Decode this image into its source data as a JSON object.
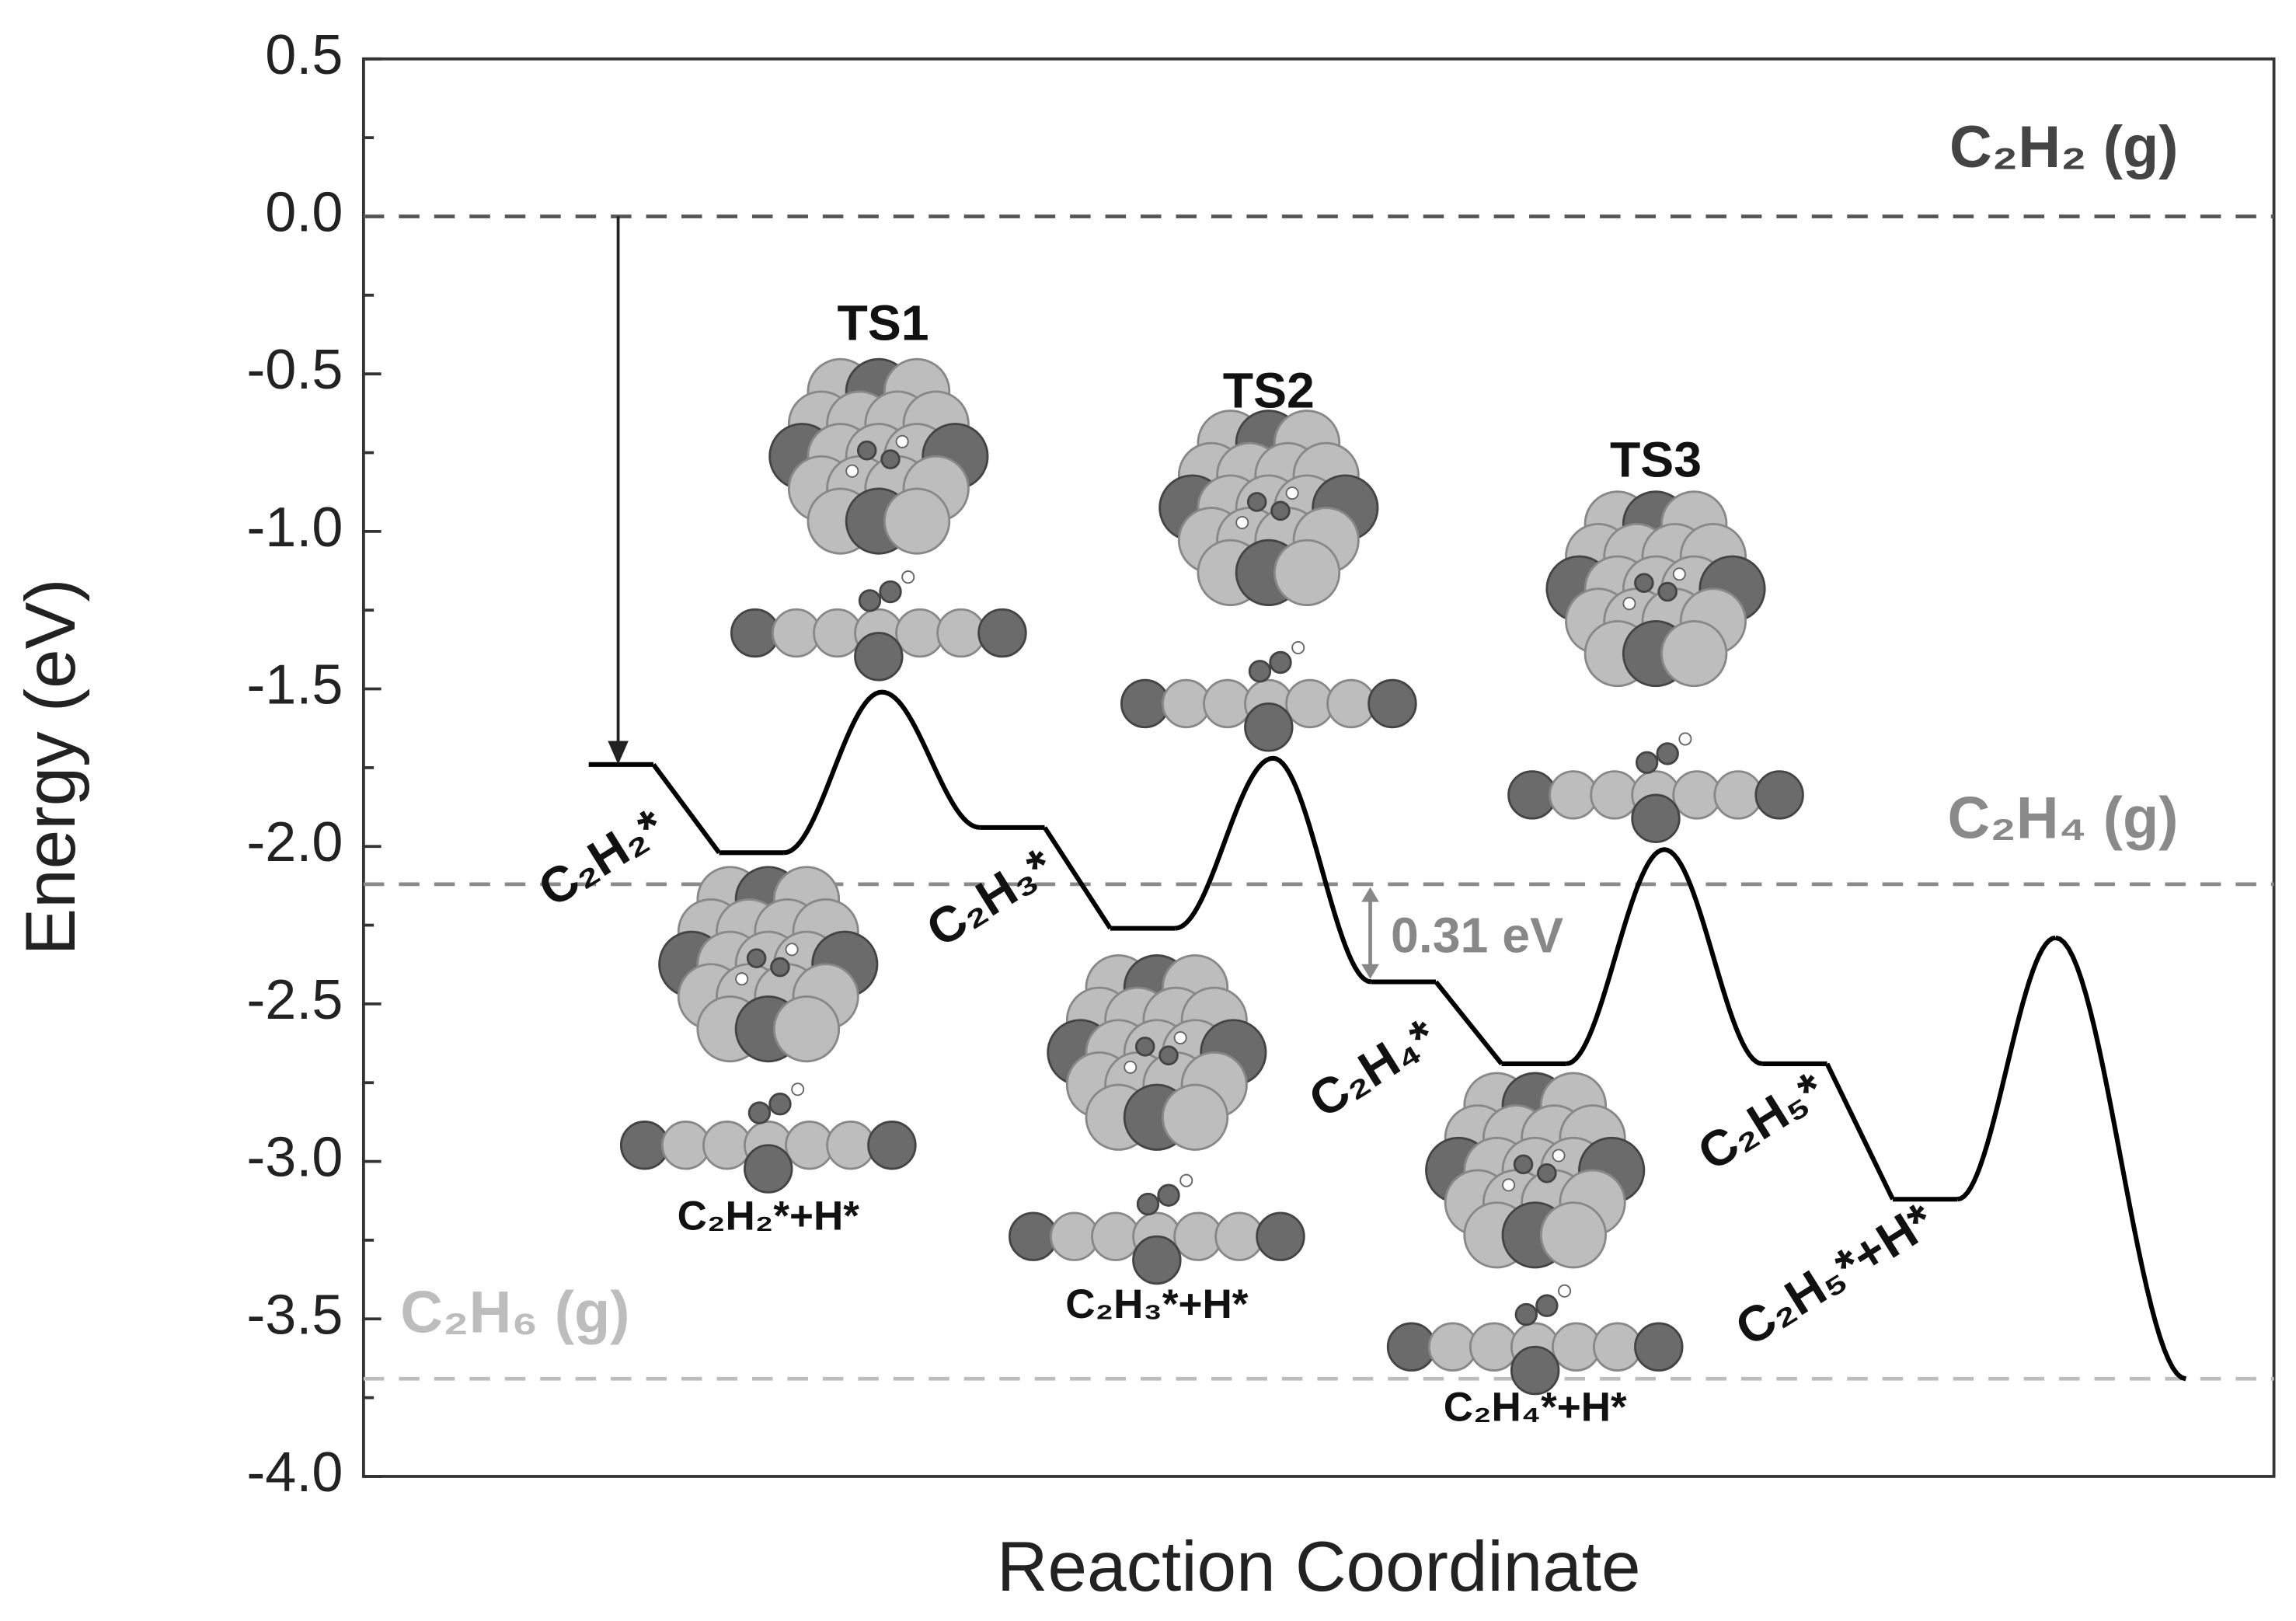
{
  "chart_data": {
    "type": "energy-profile",
    "y_label": "Energy (eV)",
    "x_label": "Reaction Coordinate",
    "ylim": [
      -4.0,
      0.5
    ],
    "yticks": [
      0.5,
      {
        "value": 0,
        "label": "0.0"
      },
      -0.5,
      {
        "value": -1,
        "label": "-1.0"
      },
      -1.5,
      {
        "value": -2,
        "label": "-2.0"
      },
      -2.5,
      {
        "value": -3,
        "label": "-3.0"
      },
      -3.5,
      {
        "value": -4,
        "label": "-4.0"
      }
    ],
    "categories": [
      "C₂H₂*",
      "C₂H₂*+H*",
      "TS1",
      "C₂H₃*",
      "C₂H₃*+H*",
      "TS2",
      "C₂H₄*",
      "C₂H₄*+H*",
      "TS3",
      "C₂H₅*",
      "C₂H₅*+H*",
      null,
      null
    ],
    "values": [
      -1.74,
      -2.02,
      -1.51,
      -1.94,
      -2.26,
      -1.72,
      -2.43,
      -2.69,
      -2.01,
      -2.69,
      -3.12,
      -2.29,
      -3.69
    ],
    "color": "#000000",
    "reference_lines": [
      {
        "label": "C₂H₂ (g)",
        "value": 0,
        "color": "#444444"
      },
      {
        "label": "C₂H₄ (g)",
        "value": -2.12,
        "color": "#8a8a8a"
      },
      {
        "label": "C₂H₆ (g)",
        "value": -3.69,
        "color": "#bdbdbd"
      }
    ],
    "annotation": "0.31 eV"
  }
}
